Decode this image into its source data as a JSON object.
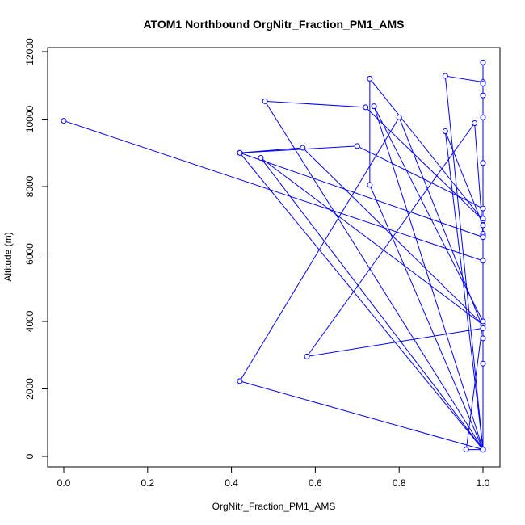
{
  "chart_data": {
    "type": "line",
    "title": "ATOM1 Northbound OrgNitr_Fraction_PM1_AMS",
    "xlabel": "OrgNitr_Fraction_PM1_AMS",
    "ylabel": "Altitude (m)",
    "xlim": [
      0,
      1
    ],
    "ylim": [
      0,
      12000
    ],
    "xticks": [
      "0.0",
      "0.2",
      "0.4",
      "0.6",
      "0.8",
      "1.0"
    ],
    "yticks": [
      "0",
      "2000",
      "4000",
      "6000",
      "8000",
      "10000",
      "12000"
    ],
    "grid": false,
    "marker": "open-circle",
    "color": "#0000ff",
    "series": [
      {
        "x": [
          0.0,
          1.0,
          1.0,
          0.48,
          0.72,
          1.0,
          0.73,
          0.73,
          1.0,
          0.91,
          1.0,
          1.0,
          1.0,
          0.42,
          0.57,
          1.0,
          0.47,
          1.0,
          0.42,
          0.8,
          1.0,
          0.58,
          0.98,
          1.0,
          1.0,
          0.96,
          1.0,
          0.74,
          1.0,
          1.0,
          1.0,
          0.7,
          0.42,
          1.0,
          1.0,
          0.91,
          1.0,
          1.0,
          1.0,
          1.0,
          1.0,
          1.0,
          1.0,
          1.0,
          1.0,
          1.0,
          1.0
        ],
        "y": [
          9950,
          5800,
          200,
          10530,
          10350,
          7000,
          11200,
          8050,
          200,
          11280,
          11100,
          6600,
          200,
          9000,
          9150,
          3900,
          8850,
          200,
          2230,
          10050,
          3800,
          2960,
          9880,
          6550,
          200,
          200,
          4000,
          10380,
          200,
          11680,
          7350,
          9200,
          9000,
          6500,
          6850,
          9640,
          200,
          10700,
          2750,
          200,
          11050,
          3500,
          200,
          8700,
          7050,
          10050,
          200
        ]
      }
    ]
  }
}
